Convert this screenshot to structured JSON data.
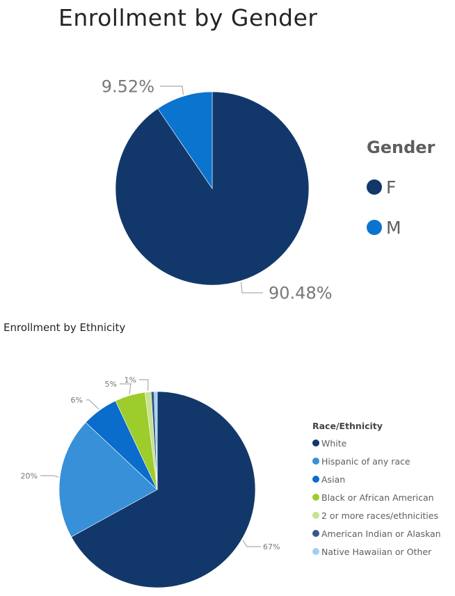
{
  "chart_data": [
    {
      "type": "pie",
      "title": "Enrollment by Gender",
      "legend_title": "Gender",
      "legend_position": "right",
      "categories": [
        "F",
        "M"
      ],
      "values": [
        90.48,
        9.52
      ],
      "data_labels": [
        "90.48%",
        "9.52%"
      ],
      "colors": [
        "#12386b",
        "#0b74cf"
      ]
    },
    {
      "type": "pie",
      "title": "Enrollment by Ethnicity",
      "legend_title": "Race/Ethnicity",
      "legend_position": "right",
      "categories": [
        "White",
        "Hispanic of any race",
        "Asian",
        "Black or African American",
        "2 or more races/ethnicities",
        "American Indian or Alaskan",
        "Native Hawaiian or Other"
      ],
      "values": [
        67,
        20,
        6,
        5,
        1,
        0.5,
        0.5
      ],
      "data_labels": [
        "67%",
        "20%",
        "6%",
        "5%",
        "1%",
        "",
        ""
      ],
      "colors": [
        "#12386b",
        "#3790d8",
        "#0a6ccb",
        "#9dcc2d",
        "#c8e28f",
        "#37598a",
        "#9fcff5"
      ]
    }
  ]
}
